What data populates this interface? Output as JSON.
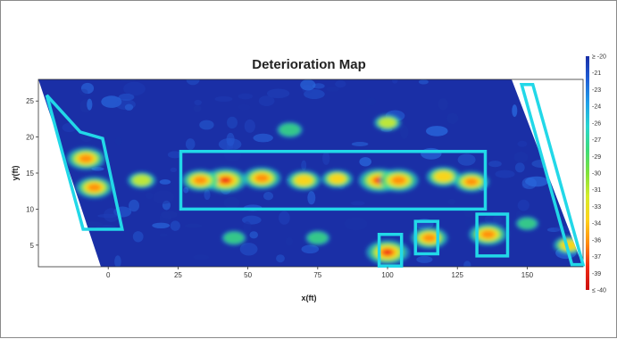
{
  "chart_data": {
    "type": "heatmap",
    "title": "Deterioration Map",
    "xlabel": "x(ft)",
    "ylabel": "y(ft)",
    "xlim": [
      -25,
      170
    ],
    "ylim": [
      2,
      28
    ],
    "x_ticks": [
      "0",
      "25",
      "50",
      "75",
      "100",
      "125",
      "150"
    ],
    "x_tick_values": [
      0,
      25,
      50,
      75,
      100,
      125,
      150
    ],
    "y_ticks": [
      "5",
      "10",
      "15",
      "20",
      "25"
    ],
    "y_tick_values": [
      5,
      10,
      15,
      20,
      25
    ],
    "colorbar": {
      "min": -40,
      "max": -20,
      "labels": [
        "≥ -20",
        "-21",
        "-23",
        "-24",
        "-26",
        "-27",
        "-29",
        "-30",
        "-31",
        "-33",
        "-34",
        "-36",
        "-37",
        "-39",
        "≤ -40"
      ],
      "colors": [
        "#1a2fa6",
        "#1f5fd6",
        "#1fa0e8",
        "#28d6d0",
        "#3bdc7a",
        "#7fe23a",
        "#d6ec2a",
        "#ffd21a",
        "#ff8c10",
        "#ef2a14",
        "#cc1010"
      ]
    },
    "hotspots": [
      {
        "x": 42,
        "y": 14,
        "intensity": 1.0
      },
      {
        "x": 55,
        "y": 14.3,
        "intensity": 0.85
      },
      {
        "x": 33,
        "y": 14,
        "intensity": 0.8
      },
      {
        "x": 70,
        "y": 14,
        "intensity": 0.7
      },
      {
        "x": 82,
        "y": 14.2,
        "intensity": 0.6
      },
      {
        "x": 97,
        "y": 14,
        "intensity": 0.95
      },
      {
        "x": 104,
        "y": 14,
        "intensity": 0.9
      },
      {
        "x": 120,
        "y": 14.5,
        "intensity": 0.7
      },
      {
        "x": 130,
        "y": 13.8,
        "intensity": 0.75
      },
      {
        "x": -8,
        "y": 17,
        "intensity": 0.85
      },
      {
        "x": -5,
        "y": 13,
        "intensity": 0.8
      },
      {
        "x": 12,
        "y": 14,
        "intensity": 0.5
      },
      {
        "x": 100,
        "y": 4,
        "intensity": 1.0
      },
      {
        "x": 115,
        "y": 6,
        "intensity": 0.8
      },
      {
        "x": 136,
        "y": 6.5,
        "intensity": 0.85
      },
      {
        "x": 165,
        "y": 5,
        "intensity": 0.6
      },
      {
        "x": 65,
        "y": 21,
        "intensity": 0.4
      },
      {
        "x": 100,
        "y": 22,
        "intensity": 0.45
      },
      {
        "x": 75,
        "y": 6,
        "intensity": 0.35
      },
      {
        "x": 45,
        "y": 6,
        "intensity": 0.35
      },
      {
        "x": 150,
        "y": 8,
        "intensity": 0.3
      }
    ],
    "highlight_regions": [
      {
        "name": "left-skew-region",
        "points": [
          [
            -22,
            25.8
          ],
          [
            -10,
            20.7
          ],
          [
            -2,
            19.8
          ],
          [
            5,
            7.2
          ],
          [
            -9,
            7.2
          ]
        ]
      },
      {
        "name": "central-band-region",
        "points": [
          [
            26,
            18
          ],
          [
            135,
            18
          ],
          [
            135,
            10
          ],
          [
            26,
            10
          ]
        ]
      },
      {
        "name": "spot-region-100",
        "points": [
          [
            97,
            6.5
          ],
          [
            105,
            6.5
          ],
          [
            105,
            2.1
          ],
          [
            97,
            2.1
          ]
        ]
      },
      {
        "name": "spot-region-115",
        "points": [
          [
            110,
            8.3
          ],
          [
            118,
            8.3
          ],
          [
            118,
            3.8
          ],
          [
            110,
            3.8
          ]
        ]
      },
      {
        "name": "spot-region-138",
        "points": [
          [
            132,
            9.3
          ],
          [
            143,
            9.3
          ],
          [
            143,
            3.5
          ],
          [
            132,
            3.5
          ]
        ]
      },
      {
        "name": "right-skew-region",
        "points": [
          [
            148,
            27.3
          ],
          [
            152,
            27.3
          ],
          [
            170,
            2.3
          ],
          [
            166,
            2.3
          ]
        ]
      }
    ],
    "grid": false,
    "legend": "colorbar-right"
  }
}
